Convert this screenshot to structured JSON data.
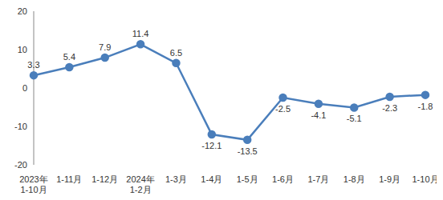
{
  "chart_data": {
    "type": "line",
    "categories": [
      "2023年\n1-10月",
      "1-11月",
      "1-12月",
      "2024年\n1-2月",
      "1-3月",
      "1-4月",
      "1-5月",
      "1-6月",
      "1-7月",
      "1-8月",
      "1-9月",
      "1-10月"
    ],
    "values": [
      3.3,
      5.4,
      7.9,
      11.4,
      6.5,
      -12.1,
      -13.5,
      -2.5,
      -4.1,
      -5.1,
      -2.3,
      -1.8
    ],
    "color": "#4a7ebb",
    "marker": "circle",
    "ylim": [
      -20,
      20
    ],
    "yticks": [
      -20,
      -10,
      0,
      10,
      20
    ],
    "grid": false,
    "data_labels": true
  }
}
